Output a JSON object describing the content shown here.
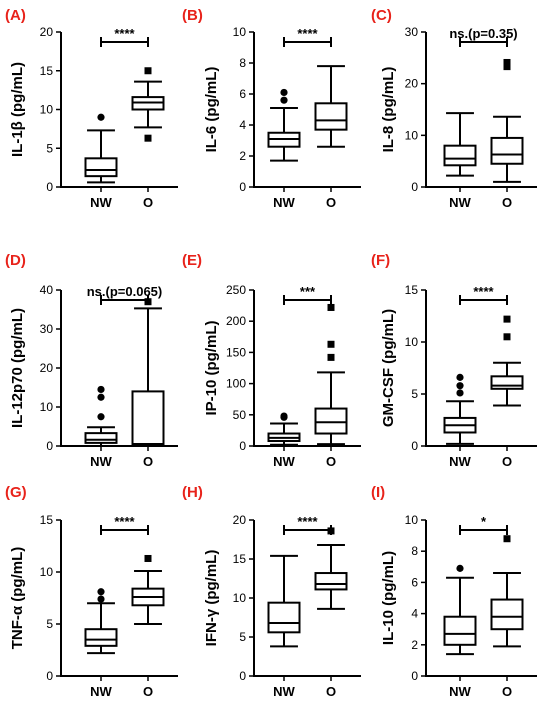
{
  "colors": {
    "panel_label": "#e8231b",
    "ink": "#000000"
  },
  "chart_data": [
    {
      "panel": "(A)",
      "type": "box",
      "ylabel": "IL-1β (pg/mL)",
      "ylim": [
        0,
        20
      ],
      "yticks": [
        "0",
        "5",
        "10",
        "15",
        "20"
      ],
      "categories": [
        "NW",
        "O"
      ],
      "significance": "****",
      "groups": [
        {
          "name": "NW",
          "min": 0.6,
          "q1": 1.4,
          "median": 2.2,
          "q3": 3.7,
          "max": 7.3,
          "outliers": [
            {
              "value": 9.0,
              "shape": "circle"
            }
          ]
        },
        {
          "name": "O",
          "min": 7.7,
          "q1": 10.0,
          "median": 10.9,
          "q3": 11.6,
          "max": 13.6,
          "outliers": [
            {
              "value": 15.0,
              "shape": "square"
            },
            {
              "value": 6.3,
              "shape": "square"
            }
          ]
        }
      ]
    },
    {
      "panel": "(B)",
      "type": "box",
      "ylabel": "IL-6 (pg/mL)",
      "ylim": [
        0,
        10
      ],
      "yticks": [
        "0",
        "2",
        "4",
        "6",
        "8",
        "10"
      ],
      "categories": [
        "NW",
        "O"
      ],
      "significance": "****",
      "groups": [
        {
          "name": "NW",
          "min": 1.7,
          "q1": 2.6,
          "median": 3.1,
          "q3": 3.5,
          "max": 5.1,
          "outliers": [
            {
              "value": 5.6,
              "shape": "circle"
            },
            {
              "value": 6.1,
              "shape": "circle"
            }
          ]
        },
        {
          "name": "O",
          "min": 2.6,
          "q1": 3.7,
          "median": 4.3,
          "q3": 5.4,
          "max": 7.8,
          "outliers": []
        }
      ]
    },
    {
      "panel": "(C)",
      "type": "box",
      "ylabel": "IL-8 (pg/mL)",
      "ylim": [
        0,
        30
      ],
      "yticks": [
        "0",
        "10",
        "20",
        "30"
      ],
      "categories": [
        "NW",
        "O"
      ],
      "significance": "ns.(p=0.35)",
      "groups": [
        {
          "name": "NW",
          "min": 2.2,
          "q1": 4.2,
          "median": 5.5,
          "q3": 8.0,
          "max": 14.3,
          "outliers": []
        },
        {
          "name": "O",
          "min": 1.0,
          "q1": 4.5,
          "median": 6.3,
          "q3": 9.5,
          "max": 13.6,
          "outliers": [
            {
              "value": 23.3,
              "shape": "square"
            },
            {
              "value": 24.1,
              "shape": "square"
            }
          ]
        }
      ]
    },
    {
      "panel": "(D)",
      "type": "box",
      "ylabel": "IL-12p70 (pg/mL)",
      "ylim": [
        0,
        40
      ],
      "yticks": [
        "0",
        "10",
        "20",
        "30",
        "40"
      ],
      "categories": [
        "NW",
        "O"
      ],
      "significance": "ns.(p=0.065)",
      "groups": [
        {
          "name": "NW",
          "min": 0.0,
          "q1": 0.8,
          "median": 1.6,
          "q3": 3.3,
          "max": 4.8,
          "outliers": [
            {
              "value": 7.5,
              "shape": "circle"
            },
            {
              "value": 12.5,
              "shape": "circle"
            },
            {
              "value": 14.5,
              "shape": "circle"
            }
          ]
        },
        {
          "name": "O",
          "min": 0.0,
          "q1": 0.2,
          "median": 0.5,
          "q3": 14.0,
          "max": 35.3,
          "outliers": [
            {
              "value": 37.0,
              "shape": "square"
            }
          ]
        }
      ]
    },
    {
      "panel": "(E)",
      "type": "box",
      "ylabel": "IP-10 (pg/mL)",
      "ylim": [
        0,
        250
      ],
      "yticks": [
        "0",
        "50",
        "100",
        "150",
        "200",
        "250"
      ],
      "categories": [
        "NW",
        "O"
      ],
      "significance": "***",
      "groups": [
        {
          "name": "NW",
          "min": 2,
          "q1": 8,
          "median": 13,
          "q3": 20,
          "max": 36,
          "outliers": [
            {
              "value": 46,
              "shape": "circle"
            },
            {
              "value": 48,
              "shape": "circle"
            }
          ]
        },
        {
          "name": "O",
          "min": 3,
          "q1": 20,
          "median": 38,
          "q3": 60,
          "max": 118,
          "outliers": [
            {
              "value": 142,
              "shape": "square"
            },
            {
              "value": 163,
              "shape": "square"
            },
            {
              "value": 222,
              "shape": "square"
            }
          ]
        }
      ]
    },
    {
      "panel": "(F)",
      "type": "box",
      "ylabel": "GM-CSF (pg/mL)",
      "ylim": [
        0,
        15
      ],
      "yticks": [
        "0",
        "5",
        "10",
        "15"
      ],
      "categories": [
        "NW",
        "O"
      ],
      "significance": "****",
      "groups": [
        {
          "name": "NW",
          "min": 0.2,
          "q1": 1.3,
          "median": 2.0,
          "q3": 2.7,
          "max": 4.3,
          "outliers": [
            {
              "value": 5.1,
              "shape": "circle"
            },
            {
              "value": 5.8,
              "shape": "circle"
            },
            {
              "value": 6.6,
              "shape": "circle"
            }
          ]
        },
        {
          "name": "O",
          "min": 3.9,
          "q1": 5.5,
          "median": 5.8,
          "q3": 6.7,
          "max": 8.0,
          "outliers": [
            {
              "value": 10.5,
              "shape": "square"
            },
            {
              "value": 12.2,
              "shape": "square"
            }
          ]
        }
      ]
    },
    {
      "panel": "(G)",
      "type": "box",
      "ylabel": "TNF-α (pg/mL)",
      "ylim": [
        0,
        15
      ],
      "yticks": [
        "0",
        "5",
        "10",
        "15"
      ],
      "categories": [
        "NW",
        "O"
      ],
      "significance": "****",
      "groups": [
        {
          "name": "NW",
          "min": 2.2,
          "q1": 2.9,
          "median": 3.5,
          "q3": 4.5,
          "max": 7.0,
          "outliers": [
            {
              "value": 7.4,
              "shape": "circle"
            },
            {
              "value": 8.1,
              "shape": "circle"
            }
          ]
        },
        {
          "name": "O",
          "min": 5.0,
          "q1": 6.8,
          "median": 7.6,
          "q3": 8.4,
          "max": 10.1,
          "outliers": [
            {
              "value": 11.3,
              "shape": "square"
            }
          ]
        }
      ]
    },
    {
      "panel": "(H)",
      "type": "box",
      "ylabel": "IFN-γ (pg/mL)",
      "ylim": [
        0,
        20
      ],
      "yticks": [
        "0",
        "5",
        "10",
        "15",
        "20"
      ],
      "categories": [
        "NW",
        "O"
      ],
      "significance": "****",
      "groups": [
        {
          "name": "NW",
          "min": 3.8,
          "q1": 5.6,
          "median": 6.8,
          "q3": 9.4,
          "max": 15.4,
          "outliers": []
        },
        {
          "name": "O",
          "min": 8.6,
          "q1": 11.1,
          "median": 11.8,
          "q3": 13.2,
          "max": 16.8,
          "outliers": [
            {
              "value": 18.6,
              "shape": "square"
            }
          ]
        }
      ]
    },
    {
      "panel": "(I)",
      "type": "box",
      "ylabel": "IL-10 (pg/mL)",
      "ylim": [
        0,
        10
      ],
      "yticks": [
        "0",
        "2",
        "4",
        "6",
        "8",
        "10"
      ],
      "categories": [
        "NW",
        "O"
      ],
      "significance": "*",
      "groups": [
        {
          "name": "NW",
          "min": 1.4,
          "q1": 2.0,
          "median": 2.7,
          "q3": 3.8,
          "max": 6.3,
          "outliers": [
            {
              "value": 6.9,
              "shape": "circle"
            }
          ]
        },
        {
          "name": "O",
          "min": 1.9,
          "q1": 3.0,
          "median": 3.8,
          "q3": 4.9,
          "max": 6.6,
          "outliers": [
            {
              "value": 8.8,
              "shape": "square"
            }
          ]
        }
      ]
    }
  ]
}
